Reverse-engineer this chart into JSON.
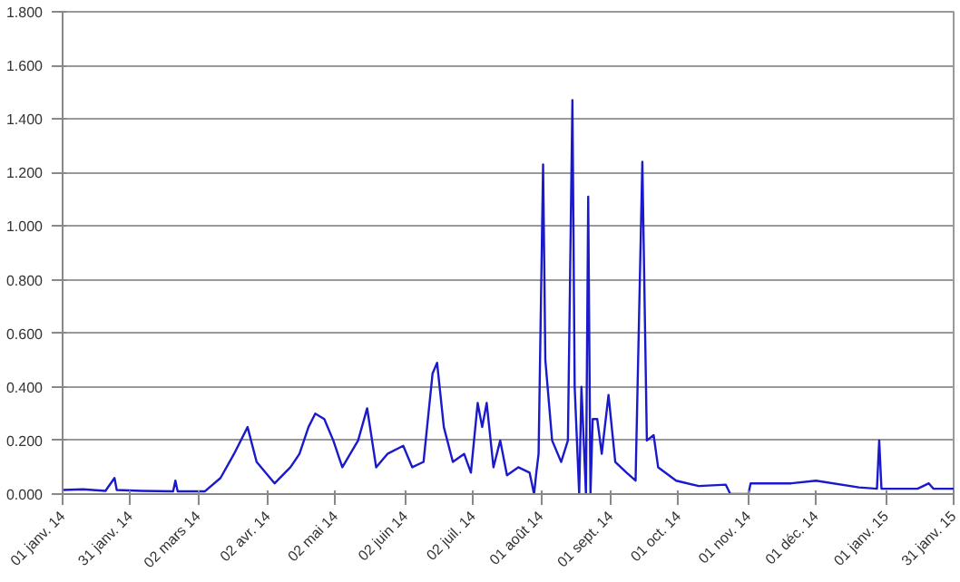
{
  "chart_data": {
    "type": "line",
    "x": [
      "2014-01-01",
      "2014-01-10",
      "2014-01-20",
      "2014-01-24",
      "2014-01-25",
      "2014-02-05",
      "2014-02-19",
      "2014-02-20",
      "2014-02-21",
      "2014-03-05",
      "2014-03-12",
      "2014-03-18",
      "2014-03-24",
      "2014-03-28",
      "2014-04-05",
      "2014-04-12",
      "2014-04-16",
      "2014-04-20",
      "2014-04-23",
      "2014-04-27",
      "2014-05-01",
      "2014-05-05",
      "2014-05-12",
      "2014-05-16",
      "2014-05-20",
      "2014-05-25",
      "2014-06-01",
      "2014-06-05",
      "2014-06-10",
      "2014-06-14",
      "2014-06-16",
      "2014-06-19",
      "2014-06-23",
      "2014-06-28",
      "2014-07-01",
      "2014-07-04",
      "2014-07-06",
      "2014-07-08",
      "2014-07-11",
      "2014-07-14",
      "2014-07-17",
      "2014-07-22",
      "2014-07-27",
      "2014-07-29",
      "2014-07-30",
      "2014-07-31",
      "2014-08-02",
      "2014-08-03",
      "2014-08-06",
      "2014-08-10",
      "2014-08-13",
      "2014-08-15",
      "2014-08-16",
      "2014-08-17",
      "2014-08-18",
      "2014-08-19",
      "2014-08-20",
      "2014-08-21",
      "2014-08-22",
      "2014-08-23",
      "2014-08-24",
      "2014-08-26",
      "2014-08-28",
      "2014-08-31",
      "2014-09-03",
      "2014-09-08",
      "2014-09-12",
      "2014-09-15",
      "2014-09-17",
      "2014-09-20",
      "2014-09-22",
      "2014-09-30",
      "2014-10-10",
      "2014-10-22",
      "2014-10-24",
      "2014-11-01",
      "2014-11-02",
      "2014-11-20",
      "2014-12-01",
      "2014-12-20",
      "2014-12-28",
      "2014-12-29",
      "2014-12-30",
      "2015-01-15",
      "2015-01-20",
      "2015-01-22",
      "2015-01-31"
    ],
    "series": [
      {
        "color": "#1a1acc",
        "values": [
          0.015,
          0.018,
          0.012,
          0.06,
          0.015,
          0.012,
          0.01,
          0.05,
          0.01,
          0.01,
          0.06,
          0.15,
          0.25,
          0.12,
          0.04,
          0.1,
          0.15,
          0.25,
          0.3,
          0.28,
          0.2,
          0.1,
          0.2,
          0.32,
          0.1,
          0.15,
          0.18,
          0.1,
          0.12,
          0.45,
          0.49,
          0.25,
          0.12,
          0.15,
          0.08,
          0.34,
          0.25,
          0.34,
          0.1,
          0.2,
          0.07,
          0.1,
          0.08,
          0.0,
          0.08,
          0.15,
          1.23,
          0.5,
          0.2,
          0.12,
          0.2,
          1.47,
          0.4,
          0.2,
          0.0,
          0.4,
          0.2,
          0.0,
          1.11,
          0.0,
          0.28,
          0.28,
          0.15,
          0.37,
          0.12,
          0.08,
          0.05,
          1.24,
          0.2,
          0.22,
          0.1,
          0.05,
          0.03,
          0.035,
          0.0,
          0.0,
          0.04,
          0.04,
          0.05,
          0.025,
          0.02,
          0.2,
          0.02,
          0.02,
          0.04,
          0.02,
          0.02
        ]
      }
    ],
    "xlim": [
      "2014-01-01",
      "2015-01-31"
    ],
    "xticks": [
      {
        "value": "2014-01-01",
        "label": "01 janv. 14"
      },
      {
        "value": "2014-01-31",
        "label": "31 janv. 14"
      },
      {
        "value": "2014-03-02",
        "label": "02 mars 14"
      },
      {
        "value": "2014-04-02",
        "label": "02 avr. 14"
      },
      {
        "value": "2014-05-02",
        "label": "02 mai 14"
      },
      {
        "value": "2014-06-02",
        "label": "02 juin 14"
      },
      {
        "value": "2014-07-02",
        "label": "02 juil. 14"
      },
      {
        "value": "2014-08-01",
        "label": "01 août 14"
      },
      {
        "value": "2014-09-01",
        "label": "01 sept. 14"
      },
      {
        "value": "2014-10-01",
        "label": "01 oct. 14"
      },
      {
        "value": "2014-11-01",
        "label": "01 nov. 14"
      },
      {
        "value": "2014-12-01",
        "label": "01 déc. 14"
      },
      {
        "value": "2015-01-01",
        "label": "01 janv. 15"
      },
      {
        "value": "2015-01-31",
        "label": "31 janv. 15"
      }
    ],
    "ylim": [
      0,
      1.8
    ],
    "yticks": [
      {
        "value": 0,
        "label": "0.000"
      },
      {
        "value": 0.2,
        "label": "0.200"
      },
      {
        "value": 0.4,
        "label": "0.400"
      },
      {
        "value": 0.6,
        "label": "0.600"
      },
      {
        "value": 0.8,
        "label": "0.800"
      },
      {
        "value": 1.0,
        "label": "1.000"
      },
      {
        "value": 1.2,
        "label": "1.200"
      },
      {
        "value": 1.4,
        "label": "1.400"
      },
      {
        "value": 1.6,
        "label": "1.600"
      },
      {
        "value": 1.8,
        "label": "1.800"
      }
    ],
    "grid": "y",
    "marker": "none",
    "line_style": "solid"
  }
}
